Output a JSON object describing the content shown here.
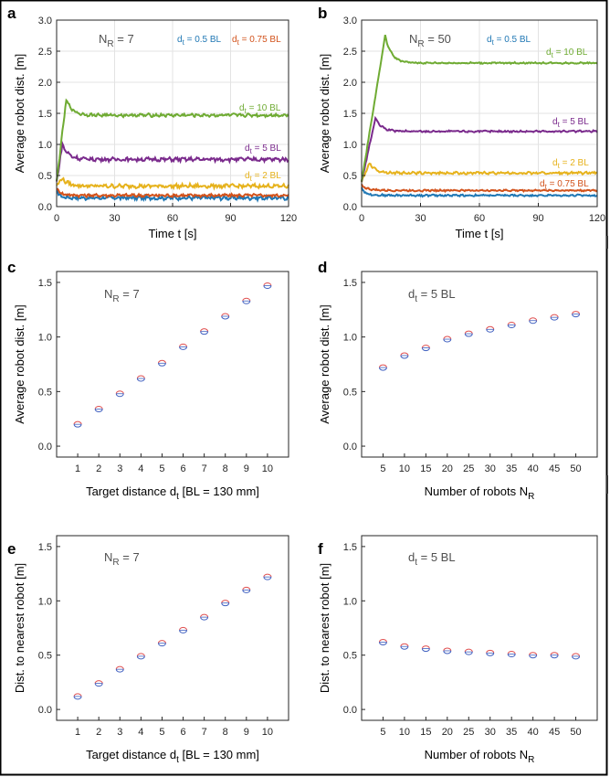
{
  "figure": {
    "background": "#ffffff",
    "frame": "#000000"
  },
  "colors": {
    "d05": "#1f77b4",
    "d075": "#d2521b",
    "d2": "#e6b21c",
    "d5": "#7a2a8c",
    "d10": "#6fab33",
    "marker_red": "#e05050",
    "marker_blue": "#4060c0",
    "annot": "#505050"
  },
  "chart_data": [
    {
      "id": "a",
      "panel_letter": "a",
      "type": "line",
      "annotation": "N_R = 7",
      "annotation_main": "N",
      "annotation_sub": "R",
      "annotation_tail": " = 7",
      "xlabel": "Time t [s]",
      "ylabel": "Average robot dist. [m]",
      "xlim": [
        0,
        120
      ],
      "ylim": [
        0,
        3.0
      ],
      "xticks": [
        0,
        30,
        60,
        90,
        120
      ],
      "yticks": [
        0,
        0.5,
        1.0,
        1.5,
        2.0,
        2.5,
        3.0
      ],
      "ytick_labels": [
        "0.0",
        "0.5",
        "1.0",
        "1.5",
        "2.0",
        "2.5",
        "3.0"
      ],
      "grid": true,
      "series": [
        {
          "name": "dt = 0.5 BL",
          "color_key": "d05",
          "start": 0.25,
          "peak_t": 2,
          "peak": 0.17,
          "steady": 0.14,
          "noise": 0.025
        },
        {
          "name": "dt = 0.75 BL",
          "color_key": "d075",
          "start": 0.3,
          "peak_t": 2,
          "peak": 0.22,
          "steady": 0.18,
          "noise": 0.02
        },
        {
          "name": "dt = 2 BL",
          "color_key": "d2",
          "start": 0.35,
          "peak_t": 3,
          "peak": 0.45,
          "steady": 0.33,
          "noise": 0.025
        },
        {
          "name": "dt = 5 BL",
          "color_key": "d5",
          "start": 0.4,
          "peak_t": 3,
          "peak": 1.0,
          "steady": 0.76,
          "noise": 0.025
        },
        {
          "name": "dt = 10 BL",
          "color_key": "d10",
          "start": 0.4,
          "peak_t": 5,
          "peak": 1.72,
          "steady": 1.47,
          "noise": 0.02
        }
      ],
      "labels": [
        {
          "main": "d",
          "sub": "t",
          "tail": " = 0.5 BL",
          "color_key": "d05",
          "pos": "legend-left"
        },
        {
          "main": "d",
          "sub": "t",
          "tail": " = 0.75 BL",
          "color_key": "d075",
          "pos": "legend-right"
        },
        {
          "main": "d",
          "sub": "t",
          "tail": " = 10 BL",
          "color_key": "d10",
          "pos": "series-right"
        },
        {
          "main": "d",
          "sub": "t",
          "tail": " = 5 BL",
          "color_key": "d5",
          "pos": "series-right"
        },
        {
          "main": "d",
          "sub": "t",
          "tail": " = 2 BL",
          "color_key": "d2",
          "pos": "series-right"
        }
      ]
    },
    {
      "id": "b",
      "panel_letter": "b",
      "type": "line",
      "annotation_main": "N",
      "annotation_sub": "R",
      "annotation_tail": " = 50",
      "xlabel": "Time t [s]",
      "ylabel": "Average robot dist. [m]",
      "xlim": [
        0,
        120
      ],
      "ylim": [
        0,
        3.0
      ],
      "xticks": [
        0,
        30,
        60,
        90,
        120
      ],
      "yticks": [
        0,
        0.5,
        1.0,
        1.5,
        2.0,
        2.5,
        3.0
      ],
      "ytick_labels": [
        "0.0",
        "0.5",
        "1.0",
        "1.5",
        "2.0",
        "2.5",
        "3.0"
      ],
      "grid": true,
      "series": [
        {
          "name": "dt = 0.5 BL",
          "color_key": "d05",
          "start": 0.3,
          "peak_t": 2,
          "peak": 0.22,
          "steady": 0.18,
          "noise": 0.012
        },
        {
          "name": "dt = 0.75 BL",
          "color_key": "d075",
          "start": 0.35,
          "peak_t": 2,
          "peak": 0.3,
          "steady": 0.26,
          "noise": 0.012
        },
        {
          "name": "dt = 2 BL",
          "color_key": "d2",
          "start": 0.4,
          "peak_t": 4,
          "peak": 0.7,
          "steady": 0.54,
          "noise": 0.015
        },
        {
          "name": "dt = 5 BL",
          "color_key": "d5",
          "start": 0.4,
          "peak_t": 7,
          "peak": 1.42,
          "steady": 1.21,
          "noise": 0.012
        },
        {
          "name": "dt = 10 BL",
          "color_key": "d10",
          "start": 0.4,
          "peak_t": 12,
          "peak": 2.75,
          "steady": 2.31,
          "noise": 0.01
        }
      ],
      "labels": [
        {
          "main": "d",
          "sub": "t",
          "tail": " = 0.5 BL",
          "color_key": "d05",
          "pos": "legend-left"
        },
        {
          "main": "d",
          "sub": "t",
          "tail": " = 10 BL",
          "color_key": "d10",
          "pos": "series-right"
        },
        {
          "main": "d",
          "sub": "t",
          "tail": " = 5 BL",
          "color_key": "d5",
          "pos": "series-right"
        },
        {
          "main": "d",
          "sub": "t",
          "tail": " = 2 BL",
          "color_key": "d2",
          "pos": "series-right"
        },
        {
          "main": "d",
          "sub": "t",
          "tail": " = 0.75 BL",
          "color_key": "d075",
          "pos": "series-right"
        }
      ]
    },
    {
      "id": "c",
      "panel_letter": "c",
      "type": "scatter",
      "annotation_main": "N",
      "annotation_sub": "R",
      "annotation_tail": " = 7",
      "xlabel_main": "Target distance d",
      "xlabel_sub": "t",
      "xlabel_tail": " [BL = 130 mm]",
      "ylabel": "Average robot dist. [m]",
      "xlim": [
        0,
        11
      ],
      "ylim": [
        -0.1,
        1.6
      ],
      "xticks": [
        1,
        2,
        3,
        4,
        5,
        6,
        7,
        8,
        9,
        10
      ],
      "yticks": [
        0,
        0.5,
        1.0,
        1.5
      ],
      "ytick_labels": [
        "0.0",
        "0.5",
        "1.0",
        "1.5"
      ],
      "grid": false,
      "x": [
        1,
        2,
        3,
        4,
        5,
        6,
        7,
        8,
        9,
        10
      ],
      "y": [
        0.2,
        0.34,
        0.48,
        0.62,
        0.76,
        0.91,
        1.05,
        1.19,
        1.33,
        1.47
      ]
    },
    {
      "id": "d",
      "panel_letter": "d",
      "type": "scatter",
      "annotation_main": "d",
      "annotation_sub": "t",
      "annotation_tail": " = 5 BL",
      "xlabel_main": "Number of robots N",
      "xlabel_sub": "R",
      "xlabel_tail": "",
      "ylabel": "Average robot dist. [m]",
      "xlim": [
        0,
        55
      ],
      "ylim": [
        -0.1,
        1.6
      ],
      "xticks": [
        5,
        10,
        15,
        20,
        25,
        30,
        35,
        40,
        45,
        50
      ],
      "yticks": [
        0,
        0.5,
        1.0,
        1.5
      ],
      "ytick_labels": [
        "0.0",
        "0.5",
        "1.0",
        "1.5"
      ],
      "grid": false,
      "x": [
        5,
        10,
        15,
        20,
        25,
        30,
        35,
        40,
        45,
        50
      ],
      "y": [
        0.72,
        0.83,
        0.9,
        0.98,
        1.03,
        1.07,
        1.11,
        1.15,
        1.18,
        1.21
      ]
    },
    {
      "id": "e",
      "panel_letter": "e",
      "type": "scatter",
      "annotation_main": "N",
      "annotation_sub": "R",
      "annotation_tail": " = 7",
      "xlabel_main": "Target distance d",
      "xlabel_sub": "t",
      "xlabel_tail": " [BL = 130 mm]",
      "ylabel": "Dist. to nearest robot [m]",
      "xlim": [
        0,
        11
      ],
      "ylim": [
        -0.1,
        1.6
      ],
      "xticks": [
        1,
        2,
        3,
        4,
        5,
        6,
        7,
        8,
        9,
        10
      ],
      "yticks": [
        0,
        0.5,
        1.0,
        1.5
      ],
      "ytick_labels": [
        "0.0",
        "0.5",
        "1.0",
        "1.5"
      ],
      "grid": false,
      "x": [
        1,
        2,
        3,
        4,
        5,
        6,
        7,
        8,
        9,
        10
      ],
      "y": [
        0.12,
        0.24,
        0.37,
        0.49,
        0.61,
        0.73,
        0.85,
        0.98,
        1.1,
        1.22
      ]
    },
    {
      "id": "f",
      "panel_letter": "f",
      "type": "scatter",
      "annotation_main": "d",
      "annotation_sub": "t",
      "annotation_tail": " = 5 BL",
      "xlabel_main": "Number of robots N",
      "xlabel_sub": "R",
      "xlabel_tail": "",
      "ylabel": "Dist. to nearest robot [m]",
      "xlim": [
        0,
        55
      ],
      "ylim": [
        -0.1,
        1.6
      ],
      "xticks": [
        5,
        10,
        15,
        20,
        25,
        30,
        35,
        40,
        45,
        50
      ],
      "yticks": [
        0,
        0.5,
        1.0,
        1.5
      ],
      "ytick_labels": [
        "0.0",
        "0.5",
        "1.0",
        "1.5"
      ],
      "grid": false,
      "x": [
        5,
        10,
        15,
        20,
        25,
        30,
        35,
        40,
        45,
        50
      ],
      "y": [
        0.62,
        0.58,
        0.56,
        0.54,
        0.53,
        0.52,
        0.51,
        0.5,
        0.5,
        0.49
      ]
    }
  ]
}
